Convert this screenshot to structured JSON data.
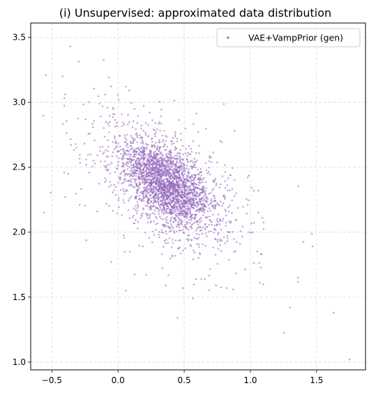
{
  "colors": {
    "points": "#9467bd",
    "background": "#ffffff",
    "grid": "#d9d9d9",
    "legend_border": "#cccccc"
  },
  "chart_data": {
    "type": "scatter",
    "title": "(i) Unsupervised: approximated data distribution",
    "xlabel": "",
    "ylabel": "",
    "xlim": [
      -0.66,
      1.87
    ],
    "ylim": [
      0.94,
      3.61
    ],
    "x_ticks": [
      -0.5,
      0.0,
      0.5,
      1.0,
      1.5
    ],
    "x_tick_labels": [
      "−0.5",
      "0.0",
      "0.5",
      "1.0",
      "1.5"
    ],
    "y_ticks": [
      1.0,
      1.5,
      2.0,
      2.5,
      3.0,
      3.5
    ],
    "y_tick_labels": [
      "1.0",
      "1.5",
      "2.0",
      "2.5",
      "3.0",
      "3.5"
    ],
    "grid": true,
    "legend": {
      "placement": "top-right",
      "entries": [
        "VAE+VampPrior (gen)"
      ]
    },
    "series": [
      {
        "name": "VAE+VampPrior (gen)",
        "distribution": {
          "kind": "bivariate-normal",
          "n_points": 2800,
          "mean": [
            0.37,
            2.37
          ],
          "std": [
            0.2,
            0.2
          ],
          "corr": -0.55
        },
        "outliers": [
          [
            -0.36,
            3.43
          ],
          [
            -0.42,
            3.2
          ],
          [
            -0.07,
            3.19
          ],
          [
            0.06,
            3.12
          ],
          [
            -0.22,
            3.0
          ],
          [
            -0.14,
            2.99
          ],
          [
            0.88,
            2.78
          ],
          [
            -0.56,
            2.15
          ],
          [
            -0.4,
            2.27
          ],
          [
            -0.29,
            2.21
          ],
          [
            -0.24,
            2.56
          ],
          [
            -0.24,
            2.52
          ],
          [
            1.06,
            2.32
          ],
          [
            1.06,
            2.15
          ],
          [
            1.09,
            2.11
          ],
          [
            1.02,
            2.0
          ],
          [
            0.99,
            2.0
          ],
          [
            1.47,
            1.89
          ],
          [
            1.36,
            1.65
          ],
          [
            1.3,
            1.42
          ],
          [
            1.63,
            1.38
          ],
          [
            1.75,
            1.02
          ],
          [
            0.45,
            1.34
          ],
          [
            0.06,
            1.55
          ],
          [
            0.36,
            1.59
          ],
          [
            0.49,
            1.57
          ],
          [
            0.74,
            1.59
          ],
          [
            0.87,
            1.56
          ],
          [
            0.82,
            1.57
          ],
          [
            0.05,
            1.85
          ],
          [
            0.98,
            2.42
          ],
          [
            0.85,
            2.44
          ]
        ]
      }
    ]
  }
}
